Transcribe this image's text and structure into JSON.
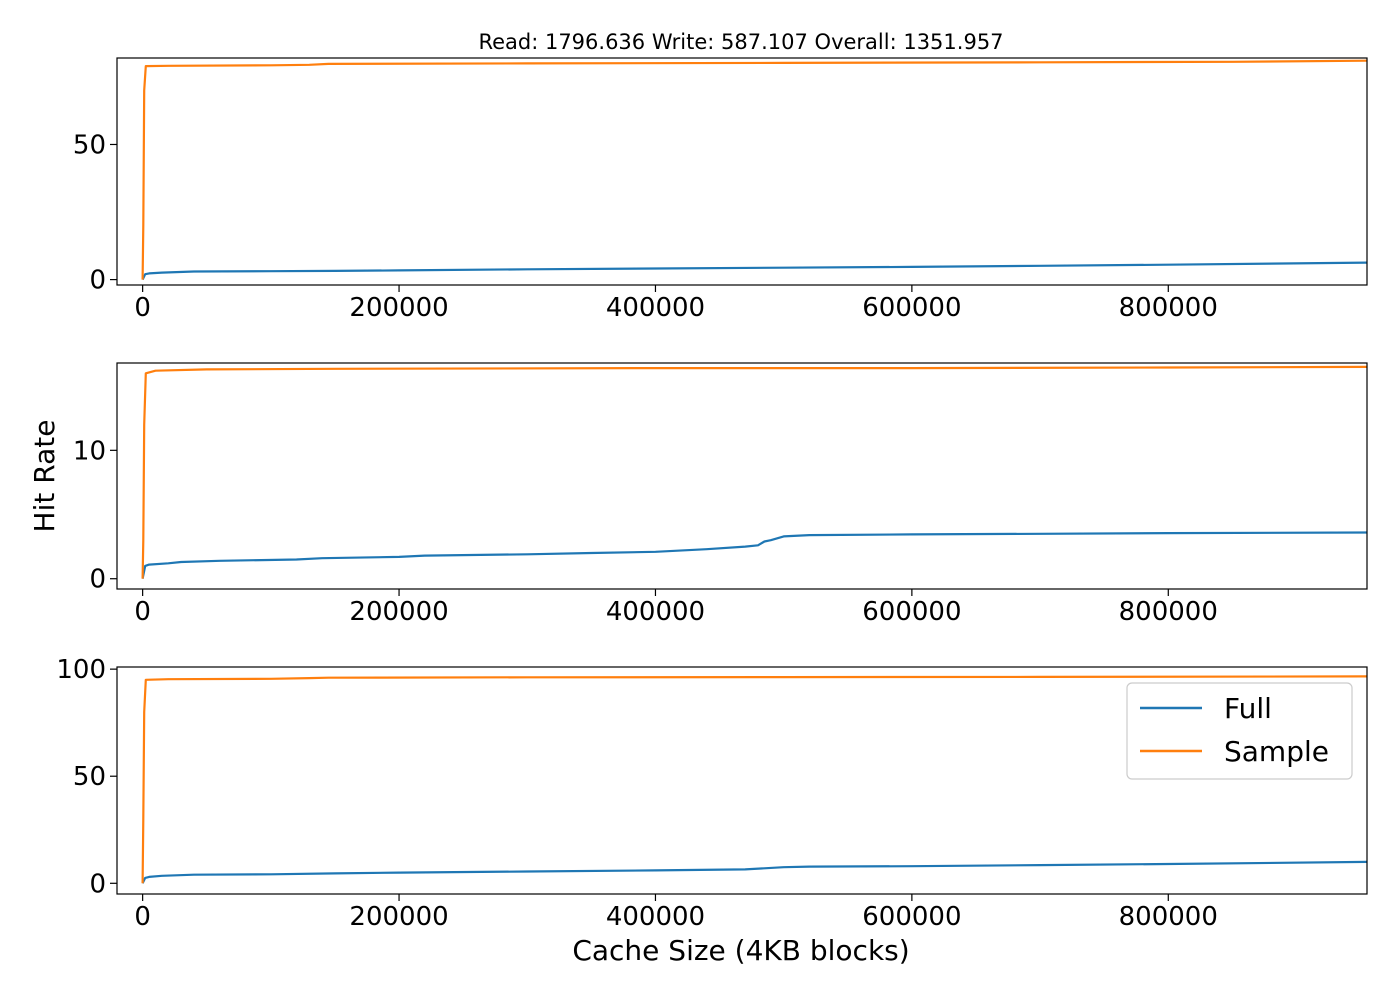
{
  "chart_data": {
    "type": "line",
    "title": "Read: 1796.636 Write: 587.107 Overall: 1351.957",
    "xlabel": "Cache Size (4KB blocks)",
    "ylabel": "Hit Rate",
    "xlim": [
      -20000,
      955000
    ],
    "x_ticks": [
      0,
      200000,
      400000,
      600000,
      800000
    ],
    "x_tick_labels": [
      "0",
      "200000",
      "400000",
      "600000",
      "800000"
    ],
    "legend": {
      "position": "upper-right",
      "entries": [
        "Full",
        "Sample"
      ]
    },
    "colors": {
      "Full": "#1f77b4",
      "Sample": "#ff7f0e"
    },
    "subplots": [
      {
        "ylim": [
          -2,
          82
        ],
        "y_ticks": [
          0,
          50
        ],
        "y_tick_labels": [
          "0",
          "50"
        ],
        "series": [
          {
            "name": "Full",
            "x": [
              0,
              2000,
              5000,
              15000,
              40000,
              100000,
              150000,
              200000,
              300000,
              400000,
              500000,
              600000,
              700000,
              800000,
              955000
            ],
            "y": [
              0,
              2.0,
              2.3,
              2.6,
              3.0,
              3.1,
              3.2,
              3.4,
              3.8,
              4.1,
              4.4,
              4.7,
              5.1,
              5.5,
              6.3
            ]
          },
          {
            "name": "Sample",
            "x": [
              0,
              500,
              1200,
              2500,
              20000,
              100000,
              130000,
              145000,
              300000,
              500000,
              700000,
              850000,
              955000
            ],
            "y": [
              0,
              20,
              70,
              79,
              79.1,
              79.3,
              79.5,
              79.8,
              80.0,
              80.2,
              80.4,
              80.6,
              81.0
            ]
          }
        ]
      },
      {
        "ylim": [
          -0.8,
          16.8
        ],
        "y_ticks": [
          0,
          10
        ],
        "y_tick_labels": [
          "0",
          "10"
        ],
        "series": [
          {
            "name": "Full",
            "x": [
              0,
              2000,
              5000,
              20000,
              30000,
              60000,
              120000,
              140000,
              200000,
              220000,
              300000,
              350000,
              400000,
              440000,
              470000,
              480000,
              485000,
              490000,
              500000,
              520000,
              600000,
              700000,
              800000,
              955000
            ],
            "y": [
              0,
              1.0,
              1.1,
              1.2,
              1.3,
              1.4,
              1.5,
              1.6,
              1.7,
              1.8,
              1.9,
              2.0,
              2.1,
              2.3,
              2.5,
              2.6,
              2.9,
              3.0,
              3.3,
              3.4,
              3.45,
              3.5,
              3.55,
              3.6
            ]
          },
          {
            "name": "Sample",
            "x": [
              0,
              500,
              1200,
              2500,
              10000,
              50000,
              150000,
              400000,
              600000,
              800000,
              955000
            ],
            "y": [
              0,
              3,
              12,
              16.0,
              16.2,
              16.3,
              16.35,
              16.4,
              16.4,
              16.45,
              16.5
            ]
          }
        ]
      },
      {
        "ylim": [
          -5,
          101
        ],
        "y_ticks": [
          0,
          50,
          100
        ],
        "y_tick_labels": [
          "0",
          "50",
          "100"
        ],
        "series": [
          {
            "name": "Full",
            "x": [
              0,
              2000,
              5000,
              15000,
              40000,
              100000,
              150000,
              200000,
              300000,
              400000,
              470000,
              500000,
              520000,
              600000,
              700000,
              800000,
              955000
            ],
            "y": [
              0,
              2.5,
              3.0,
              3.5,
              4.0,
              4.2,
              4.6,
              5.0,
              5.5,
              6.0,
              6.5,
              7.5,
              7.8,
              8.0,
              8.5,
              9.0,
              10.0
            ]
          },
          {
            "name": "Sample",
            "x": [
              0,
              500,
              1200,
              2500,
              20000,
              100000,
              130000,
              145000,
              300000,
              500000,
              700000,
              955000
            ],
            "y": [
              0,
              30,
              80,
              95,
              95.3,
              95.5,
              95.8,
              96.0,
              96.2,
              96.3,
              96.4,
              96.6
            ]
          }
        ]
      }
    ]
  }
}
